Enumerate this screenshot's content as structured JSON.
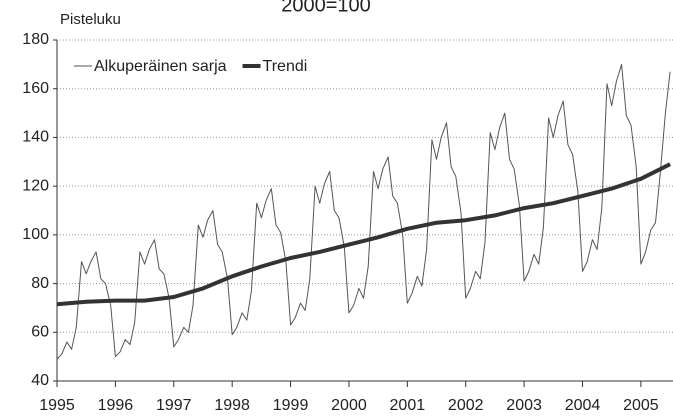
{
  "chart_data": {
    "type": "line",
    "title": "2000=100",
    "ylabel": "Pisteluku",
    "xlim": [
      1995,
      2005.55
    ],
    "xticks": [
      1995,
      1996,
      1997,
      1998,
      1999,
      2000,
      2001,
      2002,
      2003,
      2004,
      2005
    ],
    "ylim": [
      40,
      180
    ],
    "yticks": [
      40,
      60,
      80,
      100,
      120,
      140,
      160,
      180
    ],
    "grid": true,
    "legend": "top-left",
    "series": [
      {
        "name": "Alkuperäinen sarja",
        "color": "#555555",
        "width": 1,
        "x": [
          1995.0,
          1995.08,
          1995.17,
          1995.25,
          1995.33,
          1995.42,
          1995.5,
          1995.58,
          1995.67,
          1995.75,
          1995.83,
          1995.92,
          1996.0,
          1996.08,
          1996.17,
          1996.25,
          1996.33,
          1996.42,
          1996.5,
          1996.58,
          1996.67,
          1996.75,
          1996.83,
          1996.92,
          1997.0,
          1997.08,
          1997.17,
          1997.25,
          1997.33,
          1997.42,
          1997.5,
          1997.58,
          1997.67,
          1997.75,
          1997.83,
          1997.92,
          1998.0,
          1998.08,
          1998.17,
          1998.25,
          1998.33,
          1998.42,
          1998.5,
          1998.58,
          1998.67,
          1998.75,
          1998.83,
          1998.92,
          1999.0,
          1999.08,
          1999.17,
          1999.25,
          1999.33,
          1999.42,
          1999.5,
          1999.58,
          1999.67,
          1999.75,
          1999.83,
          1999.92,
          2000.0,
          2000.08,
          2000.17,
          2000.25,
          2000.33,
          2000.42,
          2000.5,
          2000.58,
          2000.67,
          2000.75,
          2000.83,
          2000.92,
          2001.0,
          2001.08,
          2001.17,
          2001.25,
          2001.33,
          2001.42,
          2001.5,
          2001.58,
          2001.67,
          2001.75,
          2001.83,
          2001.92,
          2002.0,
          2002.08,
          2002.17,
          2002.25,
          2002.33,
          2002.42,
          2002.5,
          2002.58,
          2002.67,
          2002.75,
          2002.83,
          2002.92,
          2003.0,
          2003.08,
          2003.17,
          2003.25,
          2003.33,
          2003.42,
          2003.5,
          2003.58,
          2003.67,
          2003.75,
          2003.83,
          2003.92,
          2004.0,
          2004.08,
          2004.17,
          2004.25,
          2004.33,
          2004.42,
          2004.5,
          2004.58,
          2004.67,
          2004.75,
          2004.83,
          2004.92,
          2005.0,
          2005.08,
          2005.17,
          2005.25,
          2005.33,
          2005.42,
          2005.5
        ],
        "values": [
          49,
          51,
          56,
          53,
          62,
          89,
          84,
          89,
          93,
          82,
          80,
          71,
          50,
          52,
          57,
          55,
          64,
          93,
          88,
          94,
          98,
          86,
          84,
          74,
          54,
          57,
          62,
          60,
          71,
          104,
          99,
          106,
          110,
          96,
          93,
          82,
          59,
          62,
          68,
          65,
          77,
          113,
          107,
          114,
          119,
          104,
          101,
          89,
          63,
          66,
          72,
          69,
          82,
          120,
          113,
          121,
          126,
          110,
          107,
          95,
          68,
          71,
          78,
          74,
          87,
          126,
          119,
          127,
          132,
          116,
          113,
          100,
          72,
          76,
          83,
          79,
          94,
          139,
          131,
          140,
          146,
          128,
          124,
          109,
          74,
          78,
          85,
          82,
          97,
          142,
          135,
          144,
          150,
          131,
          127,
          112,
          81,
          85,
          92,
          88,
          103,
          148,
          140,
          149,
          155,
          137,
          133,
          118,
          85,
          89,
          98,
          94,
          111,
          162,
          153,
          163,
          170,
          149,
          145,
          128,
          88,
          93,
          102,
          105,
          125,
          150,
          167
        ]
      },
      {
        "name": "Trendi",
        "color": "#333333",
        "width": 4,
        "x": [
          1995,
          1995.5,
          1996,
          1996.5,
          1997,
          1997.5,
          1998,
          1998.5,
          1999,
          1999.5,
          2000,
          2000.5,
          2001,
          2001.5,
          2002,
          2002.5,
          2003,
          2003.5,
          2004,
          2004.5,
          2005,
          2005.5
        ],
        "values": [
          71.5,
          72.5,
          73,
          73,
          74.5,
          78,
          83,
          87,
          90.5,
          93,
          96,
          99,
          102.5,
          105,
          106,
          108,
          111,
          113,
          116,
          119,
          123,
          129
        ]
      }
    ]
  }
}
